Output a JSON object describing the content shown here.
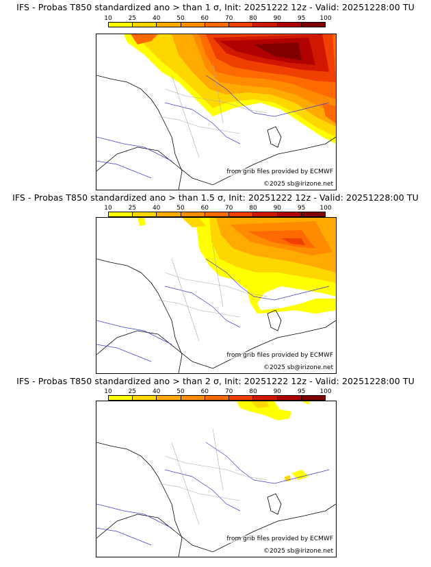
{
  "colors": {
    "scale": [
      "#ffff00",
      "#ffd700",
      "#ffaa00",
      "#ff8c00",
      "#ff6a00",
      "#f04000",
      "#d01800",
      "#b00000",
      "#800000"
    ],
    "coast": "#000000",
    "rivers": "#3b3bd6",
    "regions": "#a8a8a8"
  },
  "scale_labels": [
    "10",
    "25",
    "40",
    "50",
    "60",
    "70",
    "80",
    "90",
    "95",
    "100"
  ],
  "panels": [
    {
      "title": "IFS - Probas T850  standardized ano > than 1 σ, Init: 20251222 12z - Valid: 20251228:00 TU",
      "source_credit": "from grib files provided by ECMWF",
      "copyright": "©2025 sb@irizone.net"
    },
    {
      "title": "IFS - Probas T850  standardized ano > than 1.5 σ, Init: 20251222 12z - Valid: 20251228:00 TU",
      "source_credit": "from grib files provided by ECMWF",
      "copyright": "©2025 sb@irizone.net"
    },
    {
      "title": "IFS - Probas T850  standardized ano > than 2 σ, Init: 20251222 12z - Valid: 20251228:00 TU",
      "source_credit": "from grib files provided by ECMWF",
      "copyright": "©2025 sb@irizone.net"
    }
  ]
}
